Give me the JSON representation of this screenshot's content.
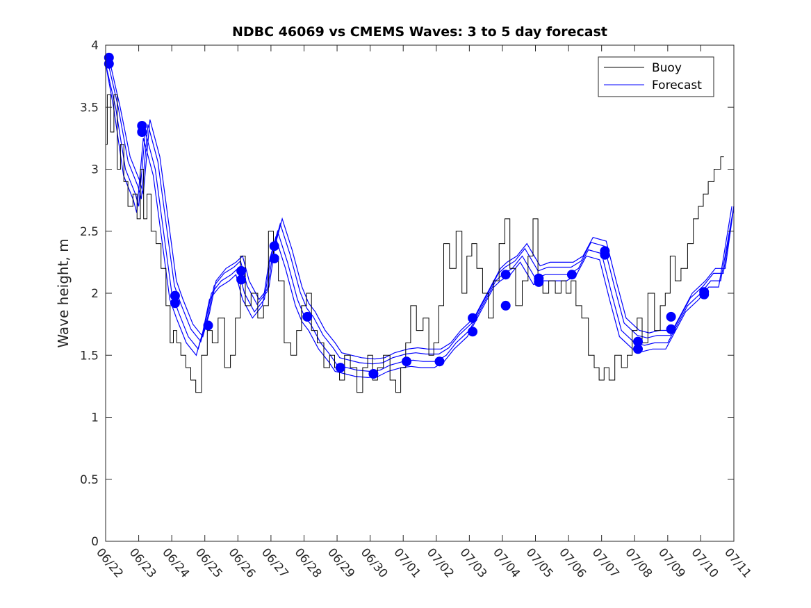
{
  "chart_data": {
    "type": "line",
    "title": "NDBC 46069 vs CMEMS Waves: 3 to 5 day forecast",
    "xlabel": "",
    "ylabel": "Wave height, m",
    "xlim": [
      "06/22",
      "07/11"
    ],
    "ylim": [
      0,
      4
    ],
    "x_tick_labels": [
      "06/22",
      "06/23",
      "06/24",
      "06/25",
      "06/26",
      "06/27",
      "06/28",
      "06/29",
      "06/30",
      "07/01",
      "07/02",
      "07/03",
      "07/04",
      "07/05",
      "07/06",
      "07/07",
      "07/08",
      "07/09",
      "07/10",
      "07/11"
    ],
    "y_tick_labels": [
      "0",
      "0.5",
      "1",
      "1.5",
      "2",
      "2.5",
      "3",
      "3.5",
      "4"
    ],
    "grid": false,
    "legend": {
      "position": "top-right",
      "entries": [
        "Buoy",
        "Forecast"
      ]
    },
    "colors": {
      "buoy": "#000000",
      "forecast": "#0000ff"
    },
    "buoy": {
      "name": "Buoy",
      "x_day_of_period": [
        0,
        0.1,
        0.2,
        0.3,
        0.4,
        0.5,
        0.6,
        0.75,
        0.9,
        1.0,
        1.1,
        1.2,
        1.3,
        1.45,
        1.6,
        1.75,
        1.9,
        2.0,
        2.1,
        2.2,
        2.35,
        2.5,
        2.65,
        2.8,
        3.0,
        3.15,
        3.3,
        3.5,
        3.7,
        3.85,
        4.0,
        4.15,
        4.3,
        4.5,
        4.7,
        4.85,
        5.0,
        5.15,
        5.3,
        5.5,
        5.7,
        5.85,
        6.0,
        6.15,
        6.3,
        6.5,
        6.7,
        6.85,
        7.0,
        7.15,
        7.3,
        7.5,
        7.7,
        7.85,
        8.0,
        8.15,
        8.3,
        8.5,
        8.7,
        8.85,
        9.0,
        9.15,
        9.3,
        9.5,
        9.7,
        9.85,
        10.0,
        10.15,
        10.3,
        10.5,
        10.7,
        10.85,
        11.0,
        11.15,
        11.3,
        11.5,
        11.65,
        11.8,
        12.0,
        12.15,
        12.3,
        12.5,
        12.7,
        12.85,
        13.0,
        13.15,
        13.3,
        13.5,
        13.7,
        13.85,
        14.0,
        14.15,
        14.3,
        14.5,
        14.7,
        14.85,
        15.0,
        15.15,
        15.3,
        15.5,
        15.7,
        15.85,
        16.0,
        16.15,
        16.3,
        16.5,
        16.7,
        16.85,
        17.0,
        17.15,
        17.3,
        17.5,
        17.7,
        17.85,
        18.0,
        18.15,
        18.3,
        18.5,
        18.7
      ],
      "values": [
        3.2,
        3.6,
        3.3,
        3.6,
        3.0,
        3.2,
        2.9,
        2.7,
        2.8,
        2.6,
        3.0,
        2.6,
        2.8,
        2.5,
        2.4,
        2.2,
        1.9,
        1.6,
        1.7,
        1.6,
        1.5,
        1.4,
        1.3,
        1.2,
        1.5,
        1.7,
        1.6,
        1.8,
        1.4,
        1.5,
        1.8,
        2.3,
        1.9,
        2.0,
        1.8,
        1.9,
        2.5,
        2.3,
        2.1,
        1.6,
        1.5,
        1.7,
        1.9,
        2.0,
        1.7,
        1.6,
        1.4,
        1.5,
        1.4,
        1.3,
        1.5,
        1.4,
        1.2,
        1.4,
        1.5,
        1.3,
        1.4,
        1.5,
        1.3,
        1.2,
        1.4,
        1.6,
        1.9,
        1.7,
        1.8,
        1.5,
        1.6,
        1.9,
        2.4,
        2.2,
        2.5,
        2.0,
        2.3,
        2.4,
        2.2,
        2.0,
        1.8,
        2.1,
        2.4,
        2.6,
        2.2,
        1.9,
        2.1,
        2.3,
        2.6,
        2.1,
        2.0,
        2.1,
        2.0,
        2.1,
        2.0,
        2.1,
        1.9,
        1.8,
        1.5,
        1.4,
        1.3,
        1.4,
        1.3,
        1.5,
        1.4,
        1.5,
        1.7,
        1.8,
        1.6,
        2.0,
        1.7,
        1.9,
        2.0,
        2.3,
        2.1,
        2.2,
        2.4,
        2.6,
        2.7,
        2.8,
        2.9,
        3.0,
        3.1
      ]
    },
    "forecast": {
      "name": "Forecast",
      "x_day_of_period": [
        0,
        0.3,
        0.6,
        0.9,
        1.0,
        1.2,
        1.5,
        1.8,
        2.0,
        2.2,
        2.5,
        2.8,
        3.0,
        3.2,
        3.5,
        3.8,
        4.0,
        4.2,
        4.5,
        4.8,
        5.0,
        5.2,
        5.5,
        5.8,
        6.0,
        6.2,
        6.5,
        6.8,
        7.0,
        7.3,
        7.6,
        8.0,
        8.3,
        8.6,
        9.0,
        9.3,
        9.6,
        10.0,
        10.3,
        10.6,
        11.0,
        11.2,
        11.5,
        11.8,
        12.0,
        12.3,
        12.6,
        13.0,
        13.3,
        13.6,
        14.0,
        14.3,
        14.6,
        15.0,
        15.3,
        15.6,
        16.0,
        16.3,
        16.6,
        17.0,
        17.3,
        17.6,
        18.0,
        18.3,
        18.6,
        19.0
      ],
      "values": [
        3.85,
        3.5,
        3.0,
        2.8,
        2.7,
        3.3,
        3.0,
        2.4,
        2.0,
        1.85,
        1.65,
        1.55,
        1.74,
        2.0,
        2.1,
        2.15,
        2.2,
        2.0,
        1.85,
        1.95,
        2.3,
        2.5,
        2.25,
        1.95,
        1.82,
        1.75,
        1.6,
        1.5,
        1.42,
        1.4,
        1.38,
        1.37,
        1.38,
        1.42,
        1.45,
        1.46,
        1.45,
        1.45,
        1.5,
        1.6,
        1.7,
        1.8,
        1.95,
        2.1,
        2.15,
        2.2,
        2.3,
        2.12,
        2.15,
        2.15,
        2.15,
        2.2,
        2.35,
        2.32,
        2.0,
        1.7,
        1.6,
        1.58,
        1.6,
        1.6,
        1.75,
        1.9,
        2.0,
        2.1,
        2.1,
        2.7
      ]
    },
    "forecast_markers": {
      "x_day_of_period": [
        0.1,
        0.1,
        1.1,
        1.1,
        2.1,
        2.1,
        3.1,
        4.1,
        4.1,
        5.1,
        5.1,
        6.1,
        7.1,
        8.1,
        9.1,
        10.1,
        11.1,
        11.1,
        12.1,
        12.1,
        13.1,
        13.1,
        14.1,
        15.1,
        15.1,
        16.1,
        16.1,
        17.1,
        17.1,
        18.1,
        18.1
      ],
      "values": [
        3.9,
        3.85,
        3.35,
        3.3,
        1.98,
        1.92,
        1.74,
        2.18,
        2.11,
        2.38,
        2.28,
        1.81,
        1.4,
        1.35,
        1.45,
        1.45,
        1.8,
        1.69,
        2.15,
        1.9,
        2.12,
        2.09,
        2.15,
        2.34,
        2.31,
        1.61,
        1.55,
        1.81,
        1.71,
        2.01,
        1.99
      ]
    }
  }
}
